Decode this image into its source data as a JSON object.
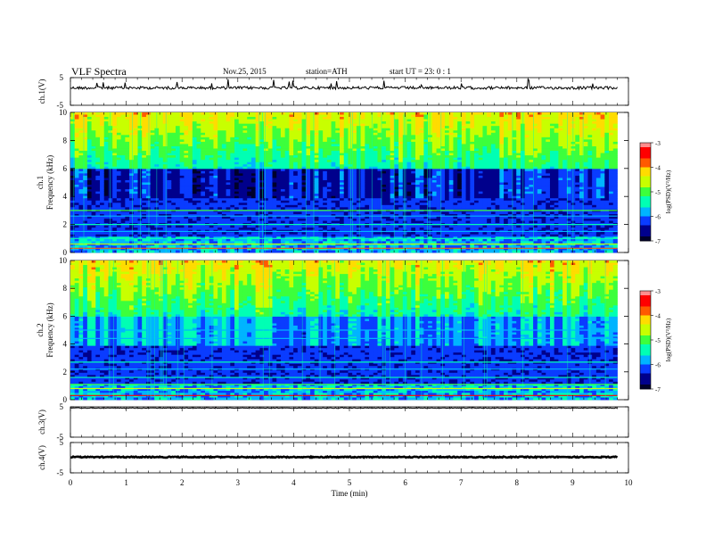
{
  "header": {
    "title": "VLF Spectra",
    "date": "Nov.25, 2015",
    "station": "station=ATH",
    "start": "start UT =  23: 0 : 1"
  },
  "chart_data": [
    {
      "type": "line",
      "panel": "waveform",
      "ylabel": "ch.1(V)",
      "yticks": [
        "5",
        "-5"
      ],
      "ylim": [
        -5,
        5
      ],
      "xlim": [
        0,
        10
      ],
      "trace_end_min": 9.8,
      "baseline_value": 1.3
    },
    {
      "type": "heatmap",
      "panel": "spectrogram",
      "ylabel": "Frequency  (kHz)",
      "channel_label": "ch.1",
      "yticks": [
        "10",
        "8",
        "6",
        "4",
        "2",
        "0"
      ],
      "ylim_khz": [
        0,
        10
      ],
      "xlim_min": [
        0,
        10
      ],
      "colorbar": {
        "label": "log(PSD)(V²/Hz)",
        "ticks": [
          "-3",
          "-4",
          "-5",
          "-6",
          "-7"
        ],
        "range": [
          -7,
          -3
        ]
      }
    },
    {
      "type": "heatmap",
      "panel": "spectrogram",
      "ylabel": "Frequency  (kHz)",
      "channel_label": "ch.2",
      "yticks": [
        "10",
        "8",
        "6",
        "4",
        "2",
        "0"
      ],
      "ylim_khz": [
        0,
        10
      ],
      "xlim_min": [
        0,
        10
      ],
      "colorbar": {
        "label": "log(PSD)(V²/Hz)",
        "ticks": [
          "-3",
          "-4",
          "-5",
          "-6",
          "-7"
        ],
        "range": [
          -7,
          -3
        ]
      }
    },
    {
      "type": "line",
      "panel": "waveform",
      "ylabel": "ch.3(V)",
      "yticks": [
        "5",
        "-5"
      ],
      "ylim": [
        -5,
        5
      ],
      "xlim": [
        0,
        10
      ],
      "trace_end_min": 9.8,
      "baseline_value": 4.6
    },
    {
      "type": "line",
      "panel": "waveform",
      "ylabel": "ch.4(V)",
      "yticks": [
        "5",
        "-5"
      ],
      "ylim": [
        -5,
        5
      ],
      "xlim": [
        0,
        10
      ],
      "trace_end_min": 9.8,
      "baseline_value": 0.2
    }
  ],
  "xaxis": {
    "label": "Time  (min)",
    "ticks": [
      "0",
      "1",
      "2",
      "3",
      "4",
      "5",
      "6",
      "7",
      "8",
      "9",
      "10"
    ]
  },
  "colormap": [
    "#00002a",
    "#00008c",
    "#0a3cff",
    "#00b4ff",
    "#00ffb4",
    "#3cff3c",
    "#c8ff00",
    "#ffdc00",
    "#ff5a00",
    "#ff0000",
    "#ff8c8c",
    "#ffffff"
  ]
}
